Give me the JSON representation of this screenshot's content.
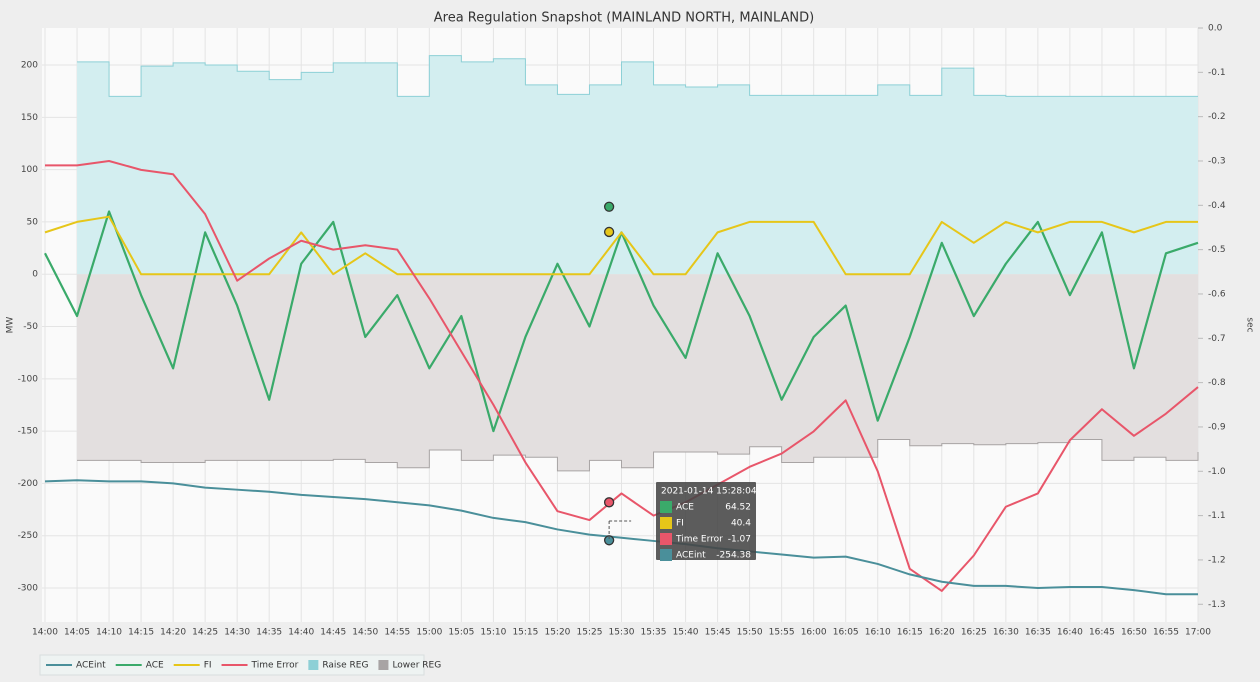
{
  "chart_data": {
    "type": "line",
    "title": "Area Regulation Snapshot (MAINLAND NORTH, MAINLAND)",
    "y_label": "MW",
    "y2_label": "sec",
    "grid": true,
    "x": [
      "14:00",
      "14:05",
      "14:10",
      "14:15",
      "14:20",
      "14:25",
      "14:30",
      "14:35",
      "14:40",
      "14:45",
      "14:50",
      "14:55",
      "15:00",
      "15:05",
      "15:10",
      "15:15",
      "15:20",
      "15:25",
      "15:30",
      "15:35",
      "15:40",
      "15:45",
      "15:50",
      "15:55",
      "16:00",
      "16:05",
      "16:10",
      "16:15",
      "16:20",
      "16:25",
      "16:30",
      "16:35",
      "16:40",
      "16:45",
      "16:50",
      "16:55",
      "17:00"
    ],
    "ylim": [
      -332.5,
      235.4
    ],
    "yticks": [
      -300,
      -250,
      -200,
      -150,
      -100,
      -50,
      0,
      50,
      100,
      150,
      200
    ],
    "y2lim": [
      -1.34,
      0
    ],
    "y2ticks": [
      {
        "value": 0,
        "label": "0.0"
      },
      -0.1,
      -0.2,
      -0.3,
      -0.4,
      -0.5,
      -0.6,
      -0.7,
      -0.8,
      -0.9,
      {
        "value": -1,
        "label": "-1.0"
      },
      -1.1,
      -1.2,
      -1.3
    ],
    "series": [
      {
        "name": "ACEint",
        "color": "#4a8f9a",
        "values": [
          -198,
          -197,
          -198,
          -198,
          -200,
          -204,
          -206,
          -208,
          -211,
          -213,
          -215,
          -218,
          -221,
          -226,
          -233,
          -237,
          -244,
          -249,
          -252,
          -255,
          -258,
          -262,
          -265,
          -268,
          -271,
          -270,
          -277,
          -287,
          -294,
          -298,
          -298,
          -300,
          -299,
          -299,
          -302,
          -306,
          -306
        ]
      },
      {
        "name": "ACE",
        "color": "#3aaa6a",
        "values": [
          20,
          -40,
          60,
          -20,
          -90,
          40,
          -30,
          -120,
          10,
          50,
          -60,
          -20,
          -90,
          -40,
          -150,
          -60,
          10,
          -50,
          40,
          -30,
          -80,
          20,
          -40,
          -120,
          -60,
          -30,
          -140,
          -60,
          30,
          -40,
          10,
          50,
          -20,
          40,
          -90,
          20,
          30
        ]
      },
      {
        "name": "FI",
        "color": "#e6c619",
        "values": [
          40,
          50,
          55,
          0,
          0,
          0,
          0,
          0,
          40,
          0,
          20,
          0,
          0,
          0,
          0,
          0,
          0,
          0,
          40,
          0,
          0,
          40,
          50,
          50,
          50,
          0,
          0,
          0,
          50,
          30,
          50,
          40,
          50,
          50,
          40,
          50,
          50
        ]
      },
      {
        "name": "Time Error",
        "color": "#e8566a",
        "axis": "y2",
        "values": [
          -0.31,
          -0.31,
          -0.3,
          -0.32,
          -0.33,
          -0.42,
          -0.57,
          -0.52,
          -0.48,
          -0.5,
          -0.49,
          -0.5,
          -0.61,
          -0.73,
          -0.85,
          -0.98,
          -1.09,
          -1.11,
          -1.05,
          -1.1,
          -1.07,
          -1.03,
          -0.99,
          -0.96,
          -0.91,
          -0.84,
          -1,
          -1.22,
          -1.27,
          -1.19,
          -1.08,
          -1.05,
          -0.93,
          -0.86,
          -0.92,
          -0.87,
          -0.81
        ]
      },
      {
        "name": "Raise REG",
        "color": "#8dd0d6",
        "fill": "#d3eef0",
        "step": true,
        "values": [
          null,
          203,
          170,
          199,
          202,
          200,
          194,
          186,
          193,
          202,
          202,
          170,
          209,
          203,
          206,
          181,
          172,
          181,
          203,
          181,
          179,
          181,
          171,
          171,
          171,
          171,
          181,
          171,
          197,
          171,
          170,
          170,
          170,
          170,
          170,
          170,
          170
        ]
      },
      {
        "name": "Lower REG",
        "color": "#a8a4a4",
        "fill": "#e3dfdf",
        "step": true,
        "values": [
          null,
          -178,
          -178,
          -180,
          -180,
          -178,
          -178,
          -178,
          -178,
          -177,
          -180,
          -185,
          -168,
          -178,
          -173,
          -175,
          -188,
          -178,
          -185,
          -170,
          -170,
          -172,
          -165,
          -180,
          -175,
          -175,
          -158,
          -164,
          -162,
          -163,
          -162,
          -161,
          -158,
          -178,
          -175,
          -178,
          -170
        ]
      }
    ],
    "tooltip": {
      "time": "2021-01-14 15:28:04",
      "rows": [
        {
          "name": "ACE",
          "value": 64.52
        },
        {
          "name": "FI",
          "value": 40.4
        },
        {
          "name": "Time Error",
          "value": -1.07
        },
        {
          "name": "ACEint",
          "value": -254.38
        }
      ]
    }
  }
}
